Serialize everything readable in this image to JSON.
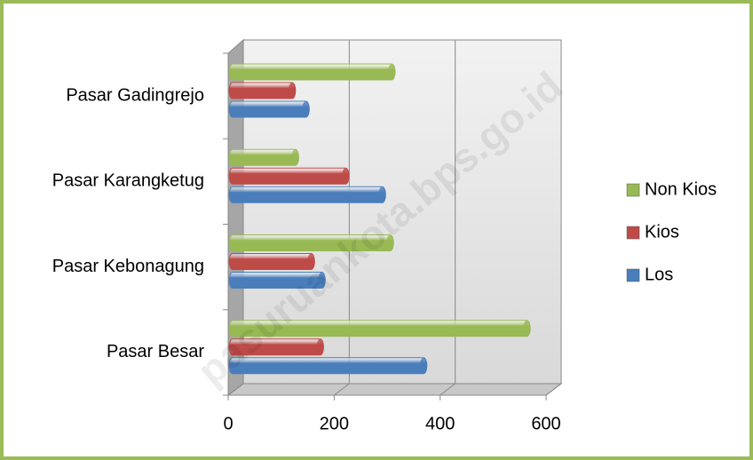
{
  "chart_data": {
    "type": "bar3d_horizontal",
    "categories": [
      "Pasar Besar",
      "Pasar Kebonagung",
      "Pasar Karangketug",
      "Pasar Gadingrejo"
    ],
    "series": [
      {
        "name": "Los",
        "color": "#4a7ebb",
        "values": [
          360,
          168,
          282,
          138
        ]
      },
      {
        "name": "Kios",
        "color": "#be4b48",
        "values": [
          165,
          148,
          213,
          112
        ]
      },
      {
        "name": "Non Kios",
        "color": "#98b954",
        "values": [
          555,
          297,
          118,
          300
        ]
      }
    ],
    "xlim": [
      0,
      600
    ],
    "xticks": [
      0,
      200,
      400,
      600
    ],
    "grid": true,
    "legend": "right",
    "watermark": "pasuruankota.bps.go.id"
  }
}
